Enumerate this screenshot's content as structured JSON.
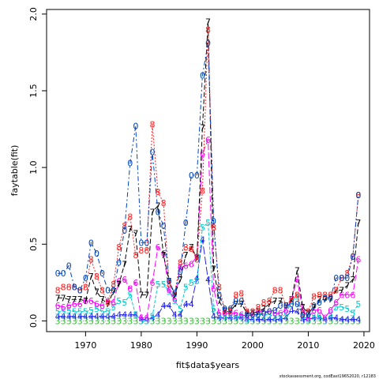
{
  "chart_data": {
    "type": "line",
    "xlabel": "fit$data$years",
    "ylabel": "faytable(fit)",
    "xlim": [
      1963,
      2021
    ],
    "ylim": [
      -0.07,
      2.03
    ],
    "xticks": [
      1970,
      1980,
      1990,
      2000,
      2010,
      2020
    ],
    "yticks": [
      0.0,
      0.5,
      1.0,
      1.5,
      2.0
    ],
    "ytick_labels": [
      "0.0",
      "0.5",
      "1.0",
      "1.5",
      "2.0"
    ],
    "grid": false,
    "x": [
      1965,
      1966,
      1967,
      1968,
      1969,
      1970,
      1971,
      1972,
      1973,
      1974,
      1975,
      1976,
      1977,
      1978,
      1979,
      1980,
      1981,
      1982,
      1983,
      1984,
      1985,
      1986,
      1987,
      1988,
      1989,
      1990,
      1991,
      1992,
      1993,
      1994,
      1995,
      1996,
      1997,
      1998,
      1999,
      2000,
      2001,
      2002,
      2003,
      2004,
      2005,
      2006,
      2007,
      2008,
      2009,
      2010,
      2011,
      2012,
      2013,
      2014,
      2015,
      2016,
      2017,
      2018,
      2019
    ],
    "series": [
      {
        "name": "0",
        "color": "#0044bb",
        "dash": "6,3,2,3",
        "values": [
          0.31,
          0.31,
          0.36,
          0.22,
          0.2,
          0.28,
          0.51,
          0.44,
          0.31,
          0.2,
          0.2,
          0.38,
          0.59,
          1.03,
          1.27,
          0.51,
          0.51,
          1.1,
          0.71,
          0.62,
          0.26,
          0.18,
          0.32,
          0.64,
          0.95,
          0.95,
          1.6,
          1.81,
          0.65,
          0.17,
          0.08,
          0.08,
          0.13,
          0.13,
          0.04,
          0.04,
          0.04,
          0.05,
          0.06,
          0.07,
          0.1,
          0.1,
          0.11,
          0.11,
          0.04,
          0.04,
          0.1,
          0.12,
          0.15,
          0.15,
          0.28,
          0.28,
          0.28,
          0.42,
          0.82
        ]
      },
      {
        "name": "8",
        "color": "#ff2222",
        "dash": "2,2",
        "values": [
          0.2,
          0.22,
          0.22,
          0.22,
          0.2,
          0.22,
          0.4,
          0.29,
          0.2,
          0.12,
          0.24,
          0.48,
          0.62,
          0.68,
          0.43,
          0.46,
          0.46,
          1.28,
          0.84,
          0.77,
          0.24,
          0.18,
          0.38,
          0.48,
          0.47,
          0.4,
          0.85,
          1.9,
          0.61,
          0.22,
          0.07,
          0.07,
          0.17,
          0.18,
          0.06,
          0.06,
          0.09,
          0.12,
          0.13,
          0.2,
          0.2,
          0.1,
          0.14,
          0.17,
          0.05,
          0.06,
          0.16,
          0.17,
          0.17,
          0.17,
          0.2,
          0.28,
          0.31,
          0.42,
          0.82
        ]
      },
      {
        "name": "7",
        "color": "#000000",
        "dash": "6,3",
        "values": [
          0.15,
          0.15,
          0.14,
          0.14,
          0.14,
          0.13,
          0.29,
          0.19,
          0.14,
          0.11,
          0.19,
          0.24,
          0.37,
          0.6,
          0.57,
          0.17,
          0.17,
          0.71,
          0.75,
          0.43,
          0.26,
          0.17,
          0.27,
          0.43,
          0.48,
          0.41,
          1.26,
          1.95,
          0.34,
          0.13,
          0.06,
          0.06,
          0.11,
          0.11,
          0.05,
          0.05,
          0.06,
          0.08,
          0.11,
          0.13,
          0.13,
          0.1,
          0.14,
          0.33,
          0.09,
          0.05,
          0.09,
          0.14,
          0.14,
          0.14,
          0.2,
          0.2,
          0.23,
          0.27,
          0.64
        ]
      },
      {
        "name": "6",
        "color": "#ff00ff",
        "dash": "8,3",
        "values": [
          0.1,
          0.09,
          0.1,
          0.11,
          0.11,
          0.13,
          0.13,
          0.11,
          0.1,
          0.13,
          0.12,
          0.26,
          0.27,
          0.21,
          0.25,
          0.02,
          0.02,
          0.25,
          0.48,
          0.44,
          0.2,
          0.14,
          0.35,
          0.36,
          0.37,
          0.42,
          1.09,
          1.18,
          0.21,
          0.05,
          0.05,
          0.05,
          0.05,
          0.04,
          0.03,
          0.04,
          0.06,
          0.06,
          0.06,
          0.05,
          0.05,
          0.07,
          0.14,
          0.27,
          0.07,
          0.02,
          0.07,
          0.07,
          0.02,
          0.07,
          0.12,
          0.17,
          0.17,
          0.17,
          0.4
        ]
      },
      {
        "name": "5",
        "color": "#00cccc",
        "dash": "4,2",
        "values": [
          0.06,
          0.06,
          0.07,
          0.06,
          0.06,
          0.06,
          0.07,
          0.08,
          0.06,
          0.06,
          0.09,
          0.13,
          0.12,
          0.17,
          0.04,
          0.0,
          0.0,
          0.03,
          0.24,
          0.24,
          0.19,
          0.13,
          0.08,
          0.22,
          0.25,
          0.26,
          0.61,
          0.64,
          0.08,
          0.03,
          0.03,
          0.03,
          0.03,
          0.03,
          0.01,
          0.02,
          0.04,
          0.04,
          0.04,
          0.03,
          0.03,
          0.04,
          0.13,
          0.16,
          0.03,
          0.01,
          0.03,
          0.03,
          0.0,
          0.04,
          0.09,
          0.09,
          0.08,
          0.05,
          0.11
        ]
      },
      {
        "name": "4",
        "color": "#2222ee",
        "dash": "10,3",
        "values": [
          0.03,
          0.03,
          0.03,
          0.03,
          0.03,
          0.03,
          0.03,
          0.03,
          0.03,
          0.03,
          0.03,
          0.04,
          0.04,
          0.04,
          0.04,
          0.01,
          0.01,
          0.02,
          0.04,
          0.1,
          0.1,
          0.04,
          0.04,
          0.11,
          0.11,
          0.28,
          0.53,
          0.27,
          0.03,
          0.02,
          0.02,
          0.02,
          0.02,
          0.02,
          0.01,
          0.01,
          0.01,
          0.01,
          0.01,
          0.01,
          0.01,
          0.02,
          0.07,
          0.06,
          0.01,
          0.01,
          0.02,
          0.02,
          0.01,
          0.02,
          0.02,
          0.01,
          0.01,
          0.01,
          0.01
        ]
      },
      {
        "name": "3",
        "color": "#22cc22",
        "dash": "1,3",
        "values": [
          0.0,
          0.0,
          0.0,
          0.0,
          0.0,
          0.0,
          0.0,
          0.0,
          0.0,
          0.0,
          0.0,
          0.0,
          0.0,
          0.0,
          0.0,
          0.0,
          0.0,
          0.0,
          0.0,
          0.0,
          0.0,
          0.0,
          0.0,
          0.0,
          0.0,
          0.0,
          0.0,
          0.0,
          0.0,
          0.0,
          0.0,
          0.0,
          0.0,
          0.0,
          0.0,
          0.0,
          0.0,
          0.0,
          0.0,
          0.0,
          0.0,
          0.0,
          0.0,
          0.0,
          0.0,
          0.0,
          0.0,
          0.0,
          0.0,
          0.0,
          0.0,
          0.0,
          0.0,
          0.0,
          0.0
        ]
      }
    ]
  },
  "footer": "stockassessment.org, codEast19652020, r12183"
}
